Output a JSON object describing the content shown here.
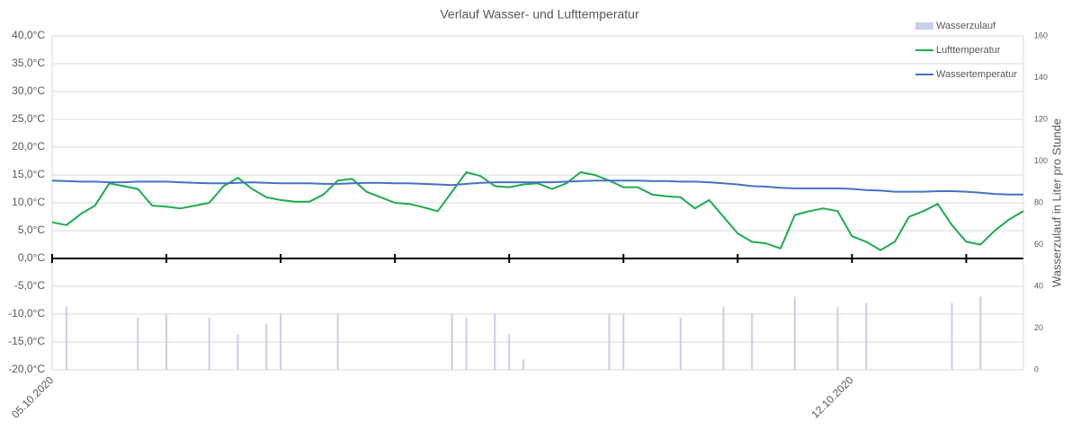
{
  "chart_data": {
    "type": "line",
    "title": "Verlauf Wasser- und Lufttemperatur",
    "y2label": "Wasserzulauf in Liter pro Stunde",
    "legend": "top-right",
    "grid": true,
    "categories": [
      "05.10.2020",
      null,
      null,
      null,
      null,
      null,
      null,
      null,
      null,
      null,
      null,
      null,
      null,
      null,
      null,
      null,
      null,
      null,
      null,
      null,
      null,
      null,
      null,
      null,
      null,
      null,
      null,
      null,
      null,
      null,
      null,
      null,
      null,
      null,
      null,
      null,
      null,
      null,
      null,
      null,
      null,
      null,
      null,
      null,
      null,
      null,
      null,
      null,
      null,
      null,
      null,
      null,
      null,
      null,
      null,
      null,
      "12.10.2020",
      null,
      null,
      null,
      null,
      null,
      null,
      null,
      null,
      null,
      null,
      null,
      null
    ],
    "ylim": [
      -20,
      40
    ],
    "yticks": [
      {
        "value": -20,
        "label": "-20,0°C"
      },
      {
        "value": -15,
        "label": "-15,0°C"
      },
      {
        "value": -10,
        "label": "-10,0°C"
      },
      {
        "value": -5,
        "label": "-5,0°C"
      },
      {
        "value": 0,
        "label": "0,0°C"
      },
      {
        "value": 5,
        "label": "5,0°C"
      },
      {
        "value": 10,
        "label": "10,0°C"
      },
      {
        "value": 15,
        "label": "15,0°C"
      },
      {
        "value": 20,
        "label": "20,0°C"
      },
      {
        "value": 25,
        "label": "25,0°C"
      },
      {
        "value": 30,
        "label": "30,0°C"
      },
      {
        "value": 35,
        "label": "35,0°C"
      },
      {
        "value": 40,
        "label": "40,0°C"
      }
    ],
    "y2lim": [
      0,
      160
    ],
    "y2ticks": [
      0,
      20,
      40,
      60,
      80,
      100,
      120,
      140,
      160
    ],
    "series": [
      {
        "name": "Wasserzulauf",
        "type": "bar",
        "axis": "y2",
        "color": "#c9cfe8",
        "values": [
          null,
          30,
          null,
          null,
          null,
          null,
          25,
          null,
          27,
          null,
          null,
          25,
          null,
          17,
          null,
          22,
          27,
          null,
          null,
          null,
          27,
          null,
          null,
          null,
          null,
          null,
          null,
          null,
          27,
          25,
          null,
          27,
          17,
          5,
          null,
          null,
          null,
          null,
          null,
          27,
          27,
          null,
          null,
          null,
          25,
          null,
          null,
          30,
          null,
          27,
          null,
          null,
          35,
          null,
          null,
          30,
          null,
          32,
          null,
          null,
          null,
          null,
          null,
          32,
          null,
          35,
          null,
          null,
          null
        ]
      },
      {
        "name": "Lufttemperatur",
        "type": "line",
        "color": "#1faa4f",
        "values": [
          6.5,
          6.0,
          8.0,
          9.5,
          13.5,
          13.0,
          12.5,
          9.5,
          9.3,
          9.0,
          9.5,
          10.0,
          13.0,
          14.5,
          12.5,
          11.0,
          10.5,
          10.2,
          10.2,
          11.5,
          14.0,
          14.3,
          12.0,
          11.0,
          10.0,
          9.8,
          9.2,
          8.5,
          12.0,
          15.5,
          14.8,
          13.0,
          12.8,
          13.3,
          13.5,
          12.5,
          13.5,
          15.5,
          15.0,
          14.0,
          12.8,
          12.8,
          11.5,
          11.2,
          11.0,
          9.0,
          10.5,
          7.5,
          4.5,
          3.0,
          2.7,
          1.8,
          7.8,
          8.5,
          9.0,
          8.5,
          4.0,
          3.0,
          1.5,
          3.0,
          7.5,
          8.5,
          9.8,
          6.0,
          3.0,
          2.5,
          5.0,
          7.0,
          8.5
        ]
      },
      {
        "name": "Wassertemperatur",
        "type": "line",
        "color": "#4472c4",
        "values": [
          14.0,
          13.9,
          13.8,
          13.8,
          13.7,
          13.7,
          13.8,
          13.8,
          13.8,
          13.7,
          13.6,
          13.5,
          13.5,
          13.6,
          13.7,
          13.6,
          13.5,
          13.5,
          13.5,
          13.4,
          13.4,
          13.5,
          13.6,
          13.6,
          13.5,
          13.5,
          13.4,
          13.3,
          13.2,
          13.4,
          13.6,
          13.7,
          13.7,
          13.7,
          13.7,
          13.7,
          13.8,
          13.9,
          14.0,
          14.0,
          14.0,
          14.0,
          13.9,
          13.9,
          13.8,
          13.8,
          13.7,
          13.5,
          13.3,
          13.0,
          12.9,
          12.7,
          12.6,
          12.6,
          12.6,
          12.6,
          12.5,
          12.3,
          12.2,
          12.0,
          12.0,
          12.0,
          12.1,
          12.1,
          12.0,
          11.8,
          11.6,
          11.5,
          11.5
        ]
      }
    ]
  }
}
